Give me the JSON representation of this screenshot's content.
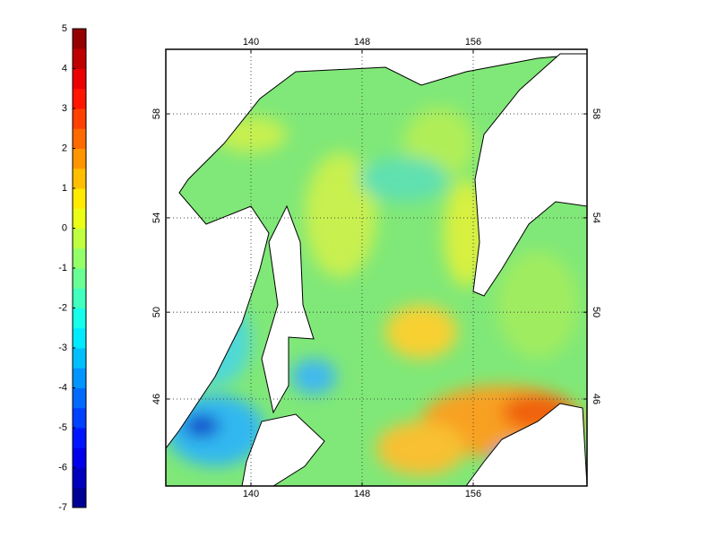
{
  "colorbar": {
    "ticks": [
      5,
      4,
      3,
      2,
      1,
      0,
      -1,
      -2,
      -3,
      -4,
      -5,
      -6,
      -7
    ]
  },
  "map": {
    "lon_ticks_top": [
      140,
      148,
      156
    ],
    "lon_ticks_bottom": [
      140,
      148,
      156
    ],
    "lat_ticks_left": [
      58,
      54,
      50,
      46
    ],
    "lat_ticks_right": [
      58,
      54,
      50,
      46
    ]
  }
}
